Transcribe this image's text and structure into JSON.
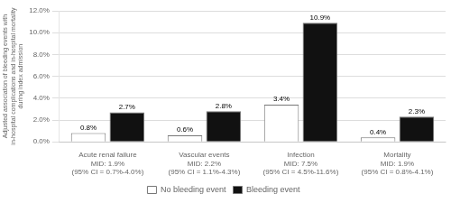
{
  "chart_data": {
    "type": "bar",
    "ylabel": "Adjusted association of bleeding events with\nin-hospital complications and in-hospital mortality\nduring index admission",
    "categories": [
      "Acute renal failure",
      "Vascular events",
      "Infection",
      "Mortality"
    ],
    "annotations": [
      [
        "MID: 1.9%",
        "(95% CI = 0.7%-4.0%)"
      ],
      [
        "MID: 2.2%",
        "(95% CI = 1.1%-4.3%)"
      ],
      [
        "MID: 7.5%",
        "(95% CI = 4.5%-11.6%)"
      ],
      [
        "MID: 1.9%",
        "(95% CI = 0.8%-4.1%)"
      ]
    ],
    "series": [
      {
        "name": "No bleeding event",
        "color": "white",
        "values": [
          0.8,
          0.6,
          3.4,
          0.4
        ],
        "value_labels": [
          "0.8%",
          "0.6%",
          "3.4%",
          "0.4%"
        ]
      },
      {
        "name": "Bleeding event",
        "color": "#111111",
        "values": [
          2.7,
          2.8,
          10.9,
          2.3
        ],
        "value_labels": [
          "2.7%",
          "2.8%",
          "10.9%",
          "2.3%"
        ]
      }
    ],
    "ylim": [
      0,
      12.0
    ],
    "yticks": [
      {
        "value": 0.0,
        "label": "0.0%"
      },
      {
        "value": 2.0,
        "label": "2.0%"
      },
      {
        "value": 4.0,
        "label": "4.0%"
      },
      {
        "value": 6.0,
        "label": "6.0%"
      },
      {
        "value": 8.0,
        "label": "8.0%"
      },
      {
        "value": 10.0,
        "label": "10.0%"
      },
      {
        "value": 12.0,
        "label": "12.0%"
      }
    ],
    "grid": true,
    "legend": "bottom",
    "data_labels": true
  }
}
